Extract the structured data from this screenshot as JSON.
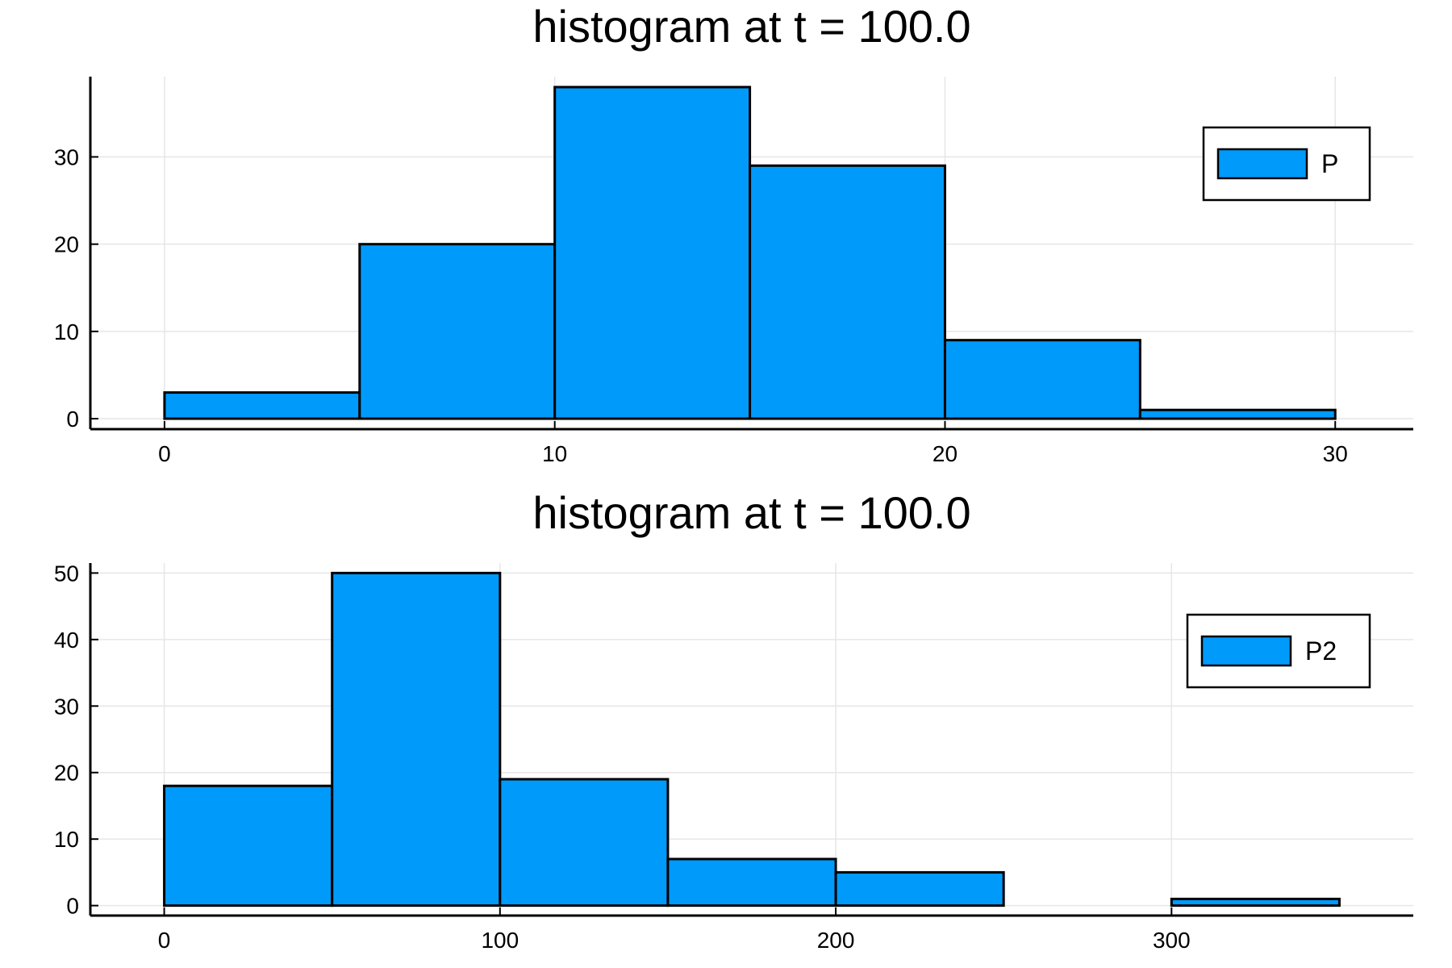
{
  "chart_data": [
    {
      "type": "histogram",
      "title": "histogram at t = 100.0",
      "bin_edges": [
        0,
        5,
        10,
        15,
        20,
        25,
        30
      ],
      "series": [
        {
          "name": "P",
          "values": [
            3,
            20,
            38,
            29,
            9,
            1
          ]
        }
      ],
      "xticks": [
        0,
        10,
        20,
        30
      ],
      "yticks": [
        0,
        10,
        20,
        30
      ],
      "xlim": [
        -1.9,
        32
      ],
      "ylim": [
        -1.2,
        39.2
      ],
      "grid": true,
      "legend_position": "top-right",
      "bar_color": "#009AFA"
    },
    {
      "type": "histogram",
      "title": "histogram at t = 100.0",
      "bin_edges": [
        0,
        50,
        100,
        150,
        200,
        250,
        300,
        350
      ],
      "series": [
        {
          "name": "P2",
          "values": [
            18,
            50,
            19,
            7,
            5,
            0,
            1
          ]
        }
      ],
      "xticks": [
        0,
        100,
        200,
        300
      ],
      "yticks": [
        0,
        10,
        20,
        30,
        40,
        50
      ],
      "xlim": [
        -22,
        372
      ],
      "ylim": [
        -1.5,
        51.5
      ],
      "grid": true,
      "legend_position": "top-right",
      "bar_color": "#009AFA"
    }
  ]
}
